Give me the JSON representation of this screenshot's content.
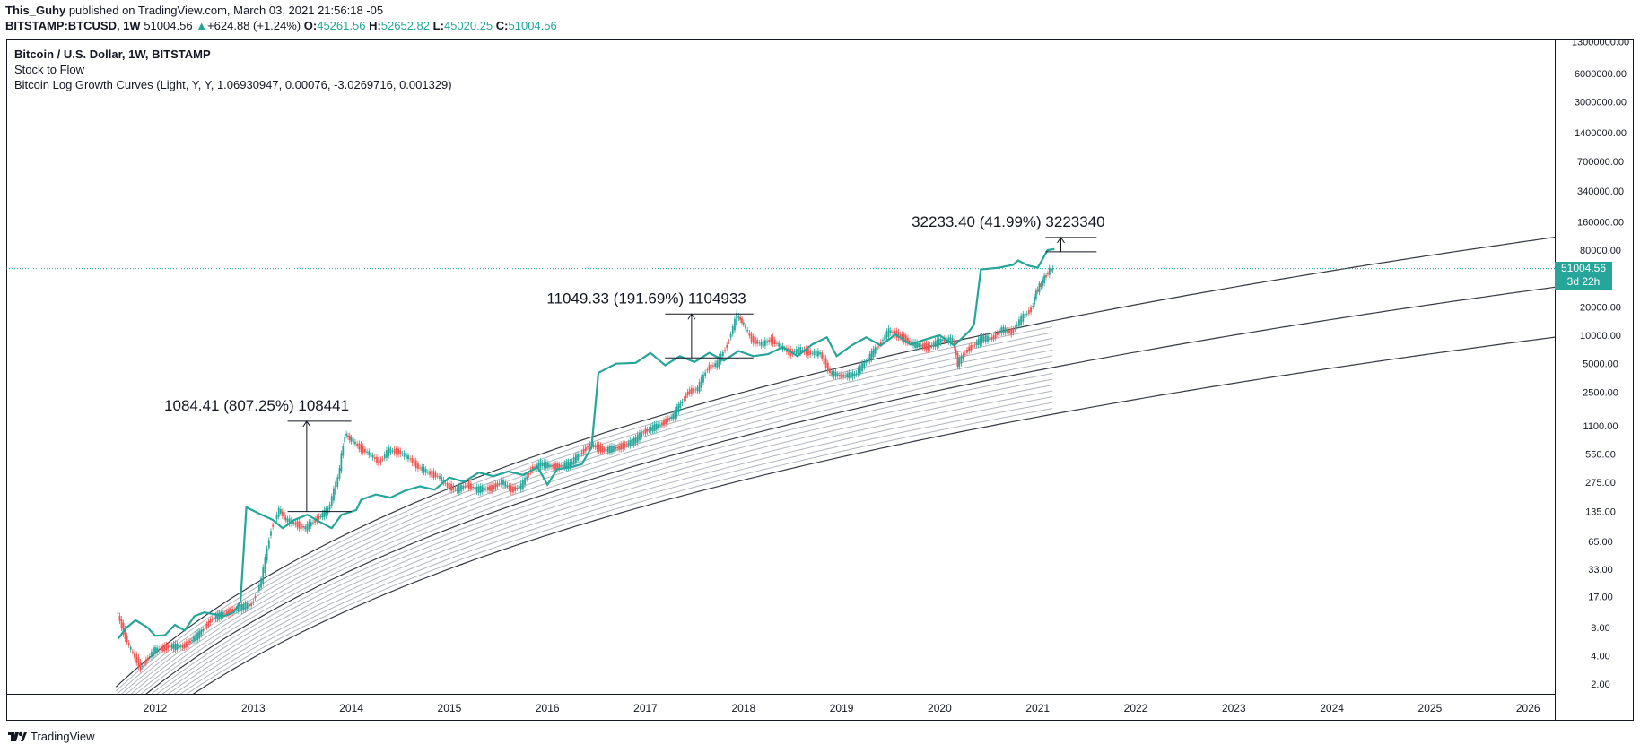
{
  "header": {
    "author": "This_Guhy",
    "published": "published on TradingView.com, March 03, 2021 21:56:18 -05",
    "symbol": "BITSTAMP:BTCUSD, 1W",
    "last": "51004.56",
    "change_icon": "triangle-up-icon",
    "change": "+624.88 (+1.24%)",
    "o_label": "O:",
    "o_value": "45261.56",
    "h_label": "H:",
    "h_value": "52652.82",
    "l_label": "L:",
    "l_value": "45020.25",
    "c_label": "C:",
    "c_value": "51004.56"
  },
  "legend": {
    "line1": "Bitcoin / U.S. Dollar, 1W, BITSTAMP",
    "line2": "Stock to Flow",
    "line3": "Bitcoin Log Growth Curves (Light, Y, Y, 1.06930947, 0.00076, -3.0269716, 0.001329)"
  },
  "price_tag": {
    "price": "51004.56",
    "countdown": "3d 22h"
  },
  "footer": {
    "brand": "TradingView",
    "icon": "tradingview-logo-icon"
  },
  "colors": {
    "accent": "#26a69a",
    "down": "#ef5350",
    "curve": "#363a45",
    "band": "#b2b5be"
  },
  "chart_data": {
    "type": "line",
    "y_scale": "log",
    "ylim": [
      1.6,
      13000000
    ],
    "xlim": [
      2011.6,
      2026.4
    ],
    "x_ticks": [
      {
        "x": 2012,
        "label": "2012"
      },
      {
        "x": 2013,
        "label": "2013"
      },
      {
        "x": 2014,
        "label": "2014"
      },
      {
        "x": 2015,
        "label": "2015"
      },
      {
        "x": 2016,
        "label": "2016"
      },
      {
        "x": 2017,
        "label": "2017"
      },
      {
        "x": 2018,
        "label": "2018"
      },
      {
        "x": 2019,
        "label": "2019"
      },
      {
        "x": 2020,
        "label": "2020"
      },
      {
        "x": 2021,
        "label": "2021"
      },
      {
        "x": 2022,
        "label": "2022"
      },
      {
        "x": 2023,
        "label": "2023"
      },
      {
        "x": 2024,
        "label": "2024"
      },
      {
        "x": 2025,
        "label": "2025"
      },
      {
        "x": 2026,
        "label": "2026"
      }
    ],
    "y_ticks": [
      {
        "v": 13000000,
        "label": "13000000.00"
      },
      {
        "v": 6000000,
        "label": "6000000.00"
      },
      {
        "v": 3000000,
        "label": "3000000.00"
      },
      {
        "v": 1400000,
        "label": "1400000.00"
      },
      {
        "v": 700000,
        "label": "700000.00"
      },
      {
        "v": 340000,
        "label": "340000.00"
      },
      {
        "v": 160000,
        "label": "160000.00"
      },
      {
        "v": 80000,
        "label": "80000.00"
      },
      {
        "v": 20000,
        "label": "20000.00"
      },
      {
        "v": 10000,
        "label": "10000.00"
      },
      {
        "v": 5000,
        "label": "5000.00"
      },
      {
        "v": 2500,
        "label": "2500.00"
      },
      {
        "v": 1100,
        "label": "1100.00"
      },
      {
        "v": 550,
        "label": "550.00"
      },
      {
        "v": 275,
        "label": "275.00"
      },
      {
        "v": 135,
        "label": "135.00"
      },
      {
        "v": 65,
        "label": "65.00"
      },
      {
        "v": 33,
        "label": "33.00"
      },
      {
        "v": 17,
        "label": "17.00"
      },
      {
        "v": 8,
        "label": "8.00"
      },
      {
        "v": 4,
        "label": "4.00"
      },
      {
        "v": 2,
        "label": "2.00"
      }
    ],
    "series": [
      {
        "name": "Stock to Flow",
        "color": "#26a69a",
        "points": [
          [
            2011.62,
            6
          ],
          [
            2011.7,
            7.8
          ],
          [
            2011.8,
            9.5
          ],
          [
            2011.92,
            8
          ],
          [
            2012.0,
            6.5
          ],
          [
            2012.1,
            6.6
          ],
          [
            2012.2,
            8.5
          ],
          [
            2012.3,
            7.4
          ],
          [
            2012.4,
            10.5
          ],
          [
            2012.5,
            11.5
          ],
          [
            2012.6,
            11
          ],
          [
            2012.7,
            10.5
          ],
          [
            2012.8,
            11.5
          ],
          [
            2012.87,
            15
          ],
          [
            2012.93,
            150
          ],
          [
            2013.05,
            130
          ],
          [
            2013.2,
            110
          ],
          [
            2013.3,
            90
          ],
          [
            2013.42,
            110
          ],
          [
            2013.55,
            125
          ],
          [
            2013.68,
            105
          ],
          [
            2013.8,
            90
          ],
          [
            2013.9,
            125
          ],
          [
            2014.05,
            140
          ],
          [
            2014.1,
            180
          ],
          [
            2014.25,
            205
          ],
          [
            2014.4,
            190
          ],
          [
            2014.55,
            225
          ],
          [
            2014.7,
            250
          ],
          [
            2014.85,
            230
          ],
          [
            2015.0,
            310
          ],
          [
            2015.15,
            280
          ],
          [
            2015.3,
            350
          ],
          [
            2015.45,
            320
          ],
          [
            2015.6,
            360
          ],
          [
            2015.75,
            330
          ],
          [
            2015.9,
            400
          ],
          [
            2016.0,
            260
          ],
          [
            2016.1,
            380
          ],
          [
            2016.25,
            400
          ],
          [
            2016.35,
            430
          ],
          [
            2016.45,
            650
          ],
          [
            2016.52,
            4000
          ],
          [
            2016.7,
            5000
          ],
          [
            2016.9,
            5100
          ],
          [
            2017.05,
            6500
          ],
          [
            2017.2,
            4800
          ],
          [
            2017.35,
            6000
          ],
          [
            2017.5,
            5200
          ],
          [
            2017.65,
            6500
          ],
          [
            2017.8,
            5400
          ],
          [
            2017.95,
            6800
          ],
          [
            2018.1,
            6000
          ],
          [
            2018.25,
            6300
          ],
          [
            2018.4,
            7500
          ],
          [
            2018.55,
            6000
          ],
          [
            2018.7,
            8000
          ],
          [
            2018.85,
            9500
          ],
          [
            2018.95,
            6000
          ],
          [
            2019.1,
            7800
          ],
          [
            2019.25,
            9500
          ],
          [
            2019.4,
            7800
          ],
          [
            2019.55,
            10200
          ],
          [
            2019.7,
            8000
          ],
          [
            2019.85,
            9000
          ],
          [
            2020.0,
            10000
          ],
          [
            2020.15,
            7800
          ],
          [
            2020.3,
            11000
          ],
          [
            2020.35,
            13000
          ],
          [
            2020.42,
            50000
          ],
          [
            2020.6,
            52000
          ],
          [
            2020.75,
            56000
          ],
          [
            2020.8,
            62000
          ],
          [
            2020.9,
            55000
          ],
          [
            2021.0,
            52000
          ],
          [
            2021.1,
            80000
          ],
          [
            2021.17,
            82000
          ]
        ]
      },
      {
        "name": "BTCUSD weekly close",
        "color_up": "#26a69a",
        "color_down": "#ef5350",
        "points": [
          [
            2011.62,
            12
          ],
          [
            2011.75,
            5
          ],
          [
            2011.87,
            3
          ],
          [
            2012.0,
            4.5
          ],
          [
            2012.15,
            5
          ],
          [
            2012.3,
            5
          ],
          [
            2012.45,
            6.5
          ],
          [
            2012.6,
            10
          ],
          [
            2012.75,
            11.5
          ],
          [
            2012.9,
            13
          ],
          [
            2013.0,
            14
          ],
          [
            2013.1,
            25
          ],
          [
            2013.2,
            90
          ],
          [
            2013.28,
            140
          ],
          [
            2013.35,
            110
          ],
          [
            2013.45,
            100
          ],
          [
            2013.55,
            90
          ],
          [
            2013.65,
            110
          ],
          [
            2013.78,
            140
          ],
          [
            2013.88,
            300
          ],
          [
            2013.95,
            900
          ],
          [
            2014.0,
            800
          ],
          [
            2014.1,
            650
          ],
          [
            2014.2,
            550
          ],
          [
            2014.3,
            450
          ],
          [
            2014.4,
            600
          ],
          [
            2014.5,
            580
          ],
          [
            2014.6,
            500
          ],
          [
            2014.7,
            400
          ],
          [
            2014.8,
            350
          ],
          [
            2014.9,
            320
          ],
          [
            2015.0,
            250
          ],
          [
            2015.1,
            230
          ],
          [
            2015.2,
            260
          ],
          [
            2015.3,
            230
          ],
          [
            2015.45,
            240
          ],
          [
            2015.55,
            280
          ],
          [
            2015.65,
            230
          ],
          [
            2015.75,
            250
          ],
          [
            2015.85,
            380
          ],
          [
            2015.95,
            430
          ],
          [
            2016.1,
            400
          ],
          [
            2016.25,
            430
          ],
          [
            2016.45,
            700
          ],
          [
            2016.6,
            600
          ],
          [
            2016.75,
            650
          ],
          [
            2016.9,
            750
          ],
          [
            2017.0,
            950
          ],
          [
            2017.15,
            1100
          ],
          [
            2017.3,
            1400
          ],
          [
            2017.45,
            2500
          ],
          [
            2017.55,
            2700
          ],
          [
            2017.65,
            4500
          ],
          [
            2017.75,
            5000
          ],
          [
            2017.85,
            8000
          ],
          [
            2017.95,
            16000
          ],
          [
            2018.0,
            14000
          ],
          [
            2018.1,
            9000
          ],
          [
            2018.2,
            8000
          ],
          [
            2018.3,
            9000
          ],
          [
            2018.4,
            7500
          ],
          [
            2018.5,
            6500
          ],
          [
            2018.6,
            7000
          ],
          [
            2018.7,
            6500
          ],
          [
            2018.8,
            6400
          ],
          [
            2018.9,
            4000
          ],
          [
            2019.0,
            3700
          ],
          [
            2019.15,
            3800
          ],
          [
            2019.25,
            5000
          ],
          [
            2019.4,
            8000
          ],
          [
            2019.5,
            11000
          ],
          [
            2019.6,
            10000
          ],
          [
            2019.75,
            8000
          ],
          [
            2019.9,
            7500
          ],
          [
            2020.05,
            9000
          ],
          [
            2020.15,
            8800
          ],
          [
            2020.2,
            5000
          ],
          [
            2020.3,
            7000
          ],
          [
            2020.45,
            9200
          ],
          [
            2020.55,
            9300
          ],
          [
            2020.65,
            11500
          ],
          [
            2020.75,
            10800
          ],
          [
            2020.85,
            15000
          ],
          [
            2020.95,
            19000
          ],
          [
            2021.0,
            29000
          ],
          [
            2021.05,
            35000
          ],
          [
            2021.12,
            47000
          ],
          [
            2021.17,
            51004.56
          ]
        ]
      }
    ],
    "growth_curves": {
      "a": 1.06930947,
      "b": 0.00076,
      "c": -3.0269716,
      "d": 0.001329,
      "x_start": 2011.6,
      "x_end": 2026.4,
      "band_lines": 7
    },
    "annotations": [
      {
        "x_from": 2013.35,
        "x_to": 2014.0,
        "low": 135,
        "high": 1225,
        "text": "1084.41 (807.25%) 108441"
      },
      {
        "x_from": 2017.2,
        "x_to": 2018.1,
        "low": 5760,
        "high": 16809,
        "text": "11049.33 (191.69%) 1104933"
      },
      {
        "x_from": 2021.08,
        "x_to": 2021.6,
        "low": 76760,
        "high": 108993,
        "text": "32233.40 (41.99%) 3223340"
      }
    ],
    "current_price": 51004.56
  }
}
